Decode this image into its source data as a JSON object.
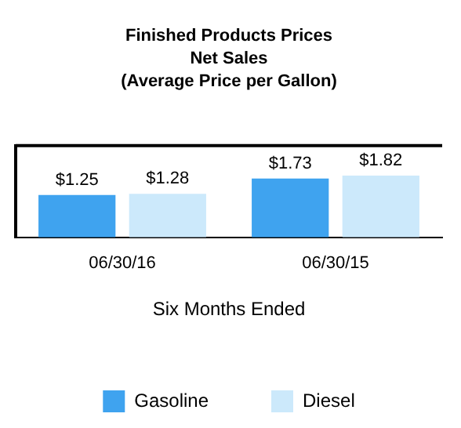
{
  "chart_data": {
    "type": "bar",
    "title": [
      "Finished Products Prices",
      "Net Sales",
      "(Average Price per Gallon)"
    ],
    "xlabel": "Six Months Ended",
    "categories": [
      "06/30/16",
      "06/30/15"
    ],
    "series": [
      {
        "name": "Gasoline",
        "color": "#3fa3ef",
        "values": [
          1.25,
          1.73
        ],
        "value_labels": [
          "$1.25",
          "$1.73"
        ]
      },
      {
        "name": "Diesel",
        "color": "#cce9fb",
        "values": [
          1.28,
          1.82
        ],
        "value_labels": [
          "$1.28",
          "$1.82"
        ]
      }
    ],
    "ylim": [
      0,
      2.7
    ],
    "tick_labels": "x",
    "grid": false,
    "legend": "bottom"
  }
}
